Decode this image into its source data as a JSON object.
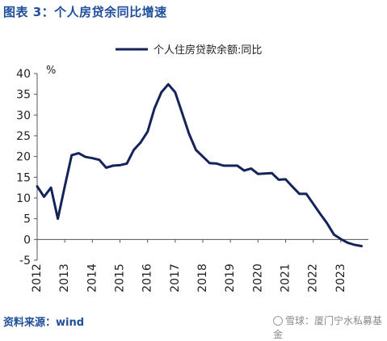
{
  "figure_title": "图表 3：个人房贷余同比增速",
  "source_text": "资料来源：wind",
  "watermark_text": "雪球：厦门宁水私募基金",
  "colors": {
    "line": "#14235a",
    "title": "#1f4e9a",
    "axis": "#555555"
  },
  "chart_data": {
    "type": "line",
    "title": "",
    "ylabel": "%",
    "xlabel": "",
    "ylim": [
      -5,
      40
    ],
    "yticks": [
      -5,
      0,
      5,
      10,
      15,
      20,
      25,
      30,
      35,
      40
    ],
    "xlim": [
      2012,
      2024
    ],
    "xticks": [
      "2012",
      "2013",
      "2014",
      "2015",
      "2016",
      "2017",
      "2018",
      "2019",
      "2020",
      "2021",
      "2022",
      "2023"
    ],
    "legend_position": "top-center",
    "grid": false,
    "series": [
      {
        "name": "个人住房贷款余额:同比",
        "x": [
          2012.0,
          2012.25,
          2012.5,
          2012.75,
          2013.0,
          2013.25,
          2013.5,
          2013.75,
          2014.0,
          2014.25,
          2014.5,
          2014.75,
          2015.0,
          2015.25,
          2015.5,
          2015.75,
          2016.0,
          2016.25,
          2016.5,
          2016.75,
          2017.0,
          2017.25,
          2017.5,
          2017.75,
          2018.0,
          2018.25,
          2018.5,
          2018.75,
          2019.0,
          2019.25,
          2019.5,
          2019.75,
          2020.0,
          2020.25,
          2020.5,
          2020.75,
          2021.0,
          2021.25,
          2021.5,
          2021.75,
          2022.0,
          2022.25,
          2022.5,
          2022.75,
          2023.0,
          2023.25,
          2023.5,
          2023.75
        ],
        "y": [
          12.8,
          10.3,
          12.5,
          5.0,
          12.8,
          20.3,
          20.8,
          19.9,
          19.6,
          19.2,
          17.3,
          17.8,
          17.9,
          18.3,
          21.6,
          23.4,
          26.0,
          31.6,
          35.5,
          37.4,
          35.5,
          30.5,
          25.5,
          21.6,
          20.0,
          18.4,
          18.3,
          17.8,
          17.8,
          17.8,
          16.6,
          17.1,
          15.8,
          15.9,
          16.0,
          14.4,
          14.5,
          12.7,
          11.0,
          11.0,
          8.6,
          6.2,
          3.9,
          1.2,
          0.1,
          -0.8,
          -1.3,
          -1.6
        ]
      }
    ]
  }
}
